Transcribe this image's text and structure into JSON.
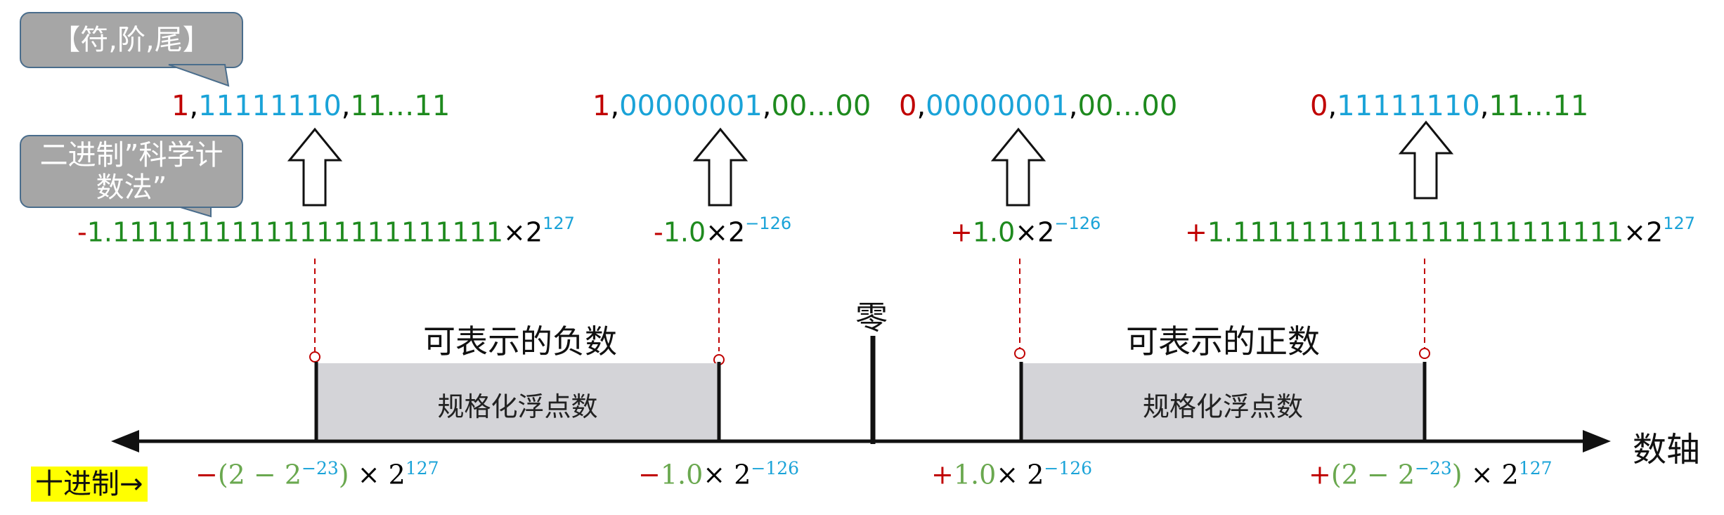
{
  "callouts": {
    "format": "【符,阶,尾】",
    "sci_notation": "二进制”科学计数法”"
  },
  "bit_patterns": [
    {
      "sign": "1",
      "exp": "11111110",
      "frac": "11…11"
    },
    {
      "sign": "1",
      "exp": "00000001",
      "frac": "00…00"
    },
    {
      "sign": "0",
      "exp": "00000001",
      "frac": "00…00"
    },
    {
      "sign": "0",
      "exp": "11111110",
      "frac": "11…11"
    }
  ],
  "sci_values": [
    {
      "sign": "-",
      "mantissa": "1.11111111111111111111111",
      "times": "×2",
      "exp": "127"
    },
    {
      "sign": "-",
      "mantissa": "1.0",
      "times": "×2",
      "exp": "−126"
    },
    {
      "sign": "+",
      "mantissa": "1.0",
      "times": "×2",
      "exp": "−126"
    },
    {
      "sign": "+",
      "mantissa": "1.11111111111111111111111",
      "times": "×2",
      "exp": "127"
    }
  ],
  "regions": {
    "negative_title": "可表示的负数",
    "positive_title": "可表示的正数",
    "negative_label": "规格化浮点数",
    "positive_label": "规格化浮点数"
  },
  "zero_label": "零",
  "axis_label": "数轴",
  "decimal_label": "十进制→",
  "decimal_values": [
    {
      "sign": "−",
      "body": "(2 − 2",
      "exp1": "−23",
      "tail": ") × 2",
      "exp2": "127"
    },
    {
      "sign": "−",
      "body": "1.0",
      "exp1": "",
      "tail": "× 2",
      "exp2": "−126"
    },
    {
      "sign": "+",
      "body": "1.0",
      "exp1": "",
      "tail": "× 2",
      "exp2": "−126"
    },
    {
      "sign": "+",
      "body": "(2 − 2",
      "exp1": "−23",
      "tail": ") × 2",
      "exp2": "127"
    }
  ],
  "colors": {
    "sign": "#c00000",
    "exponent": "#1aa3d8",
    "fraction": "#1e8a1e",
    "decimal_value": "#6aa84f",
    "region": "#d4d4d8"
  }
}
